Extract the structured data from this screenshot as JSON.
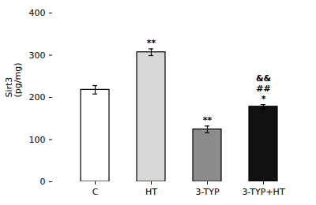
{
  "chart_data": {
    "type": "bar",
    "categories": [
      "C",
      "HT",
      "3-TYP",
      "3-TYP+HT"
    ],
    "values": [
      218,
      307,
      124,
      178
    ],
    "errors": [
      10,
      8,
      8,
      5
    ],
    "colors": [
      "#ffffff",
      "#d8d8d8",
      "#8c8c8c",
      "#111111"
    ],
    "ylabel": "Sirt3\n(pg/mg)",
    "ylim": [
      0,
      400
    ],
    "yticks": [
      0,
      100,
      200,
      300,
      400
    ],
    "grid": false,
    "annotations": [
      {
        "category": "HT",
        "text": "**"
      },
      {
        "category": "3-TYP",
        "text": "**"
      },
      {
        "category": "3-TYP+HT",
        "text": "*"
      },
      {
        "category": "3-TYP+HT",
        "text": "##"
      },
      {
        "category": "3-TYP+HT",
        "text": "&&"
      }
    ]
  }
}
